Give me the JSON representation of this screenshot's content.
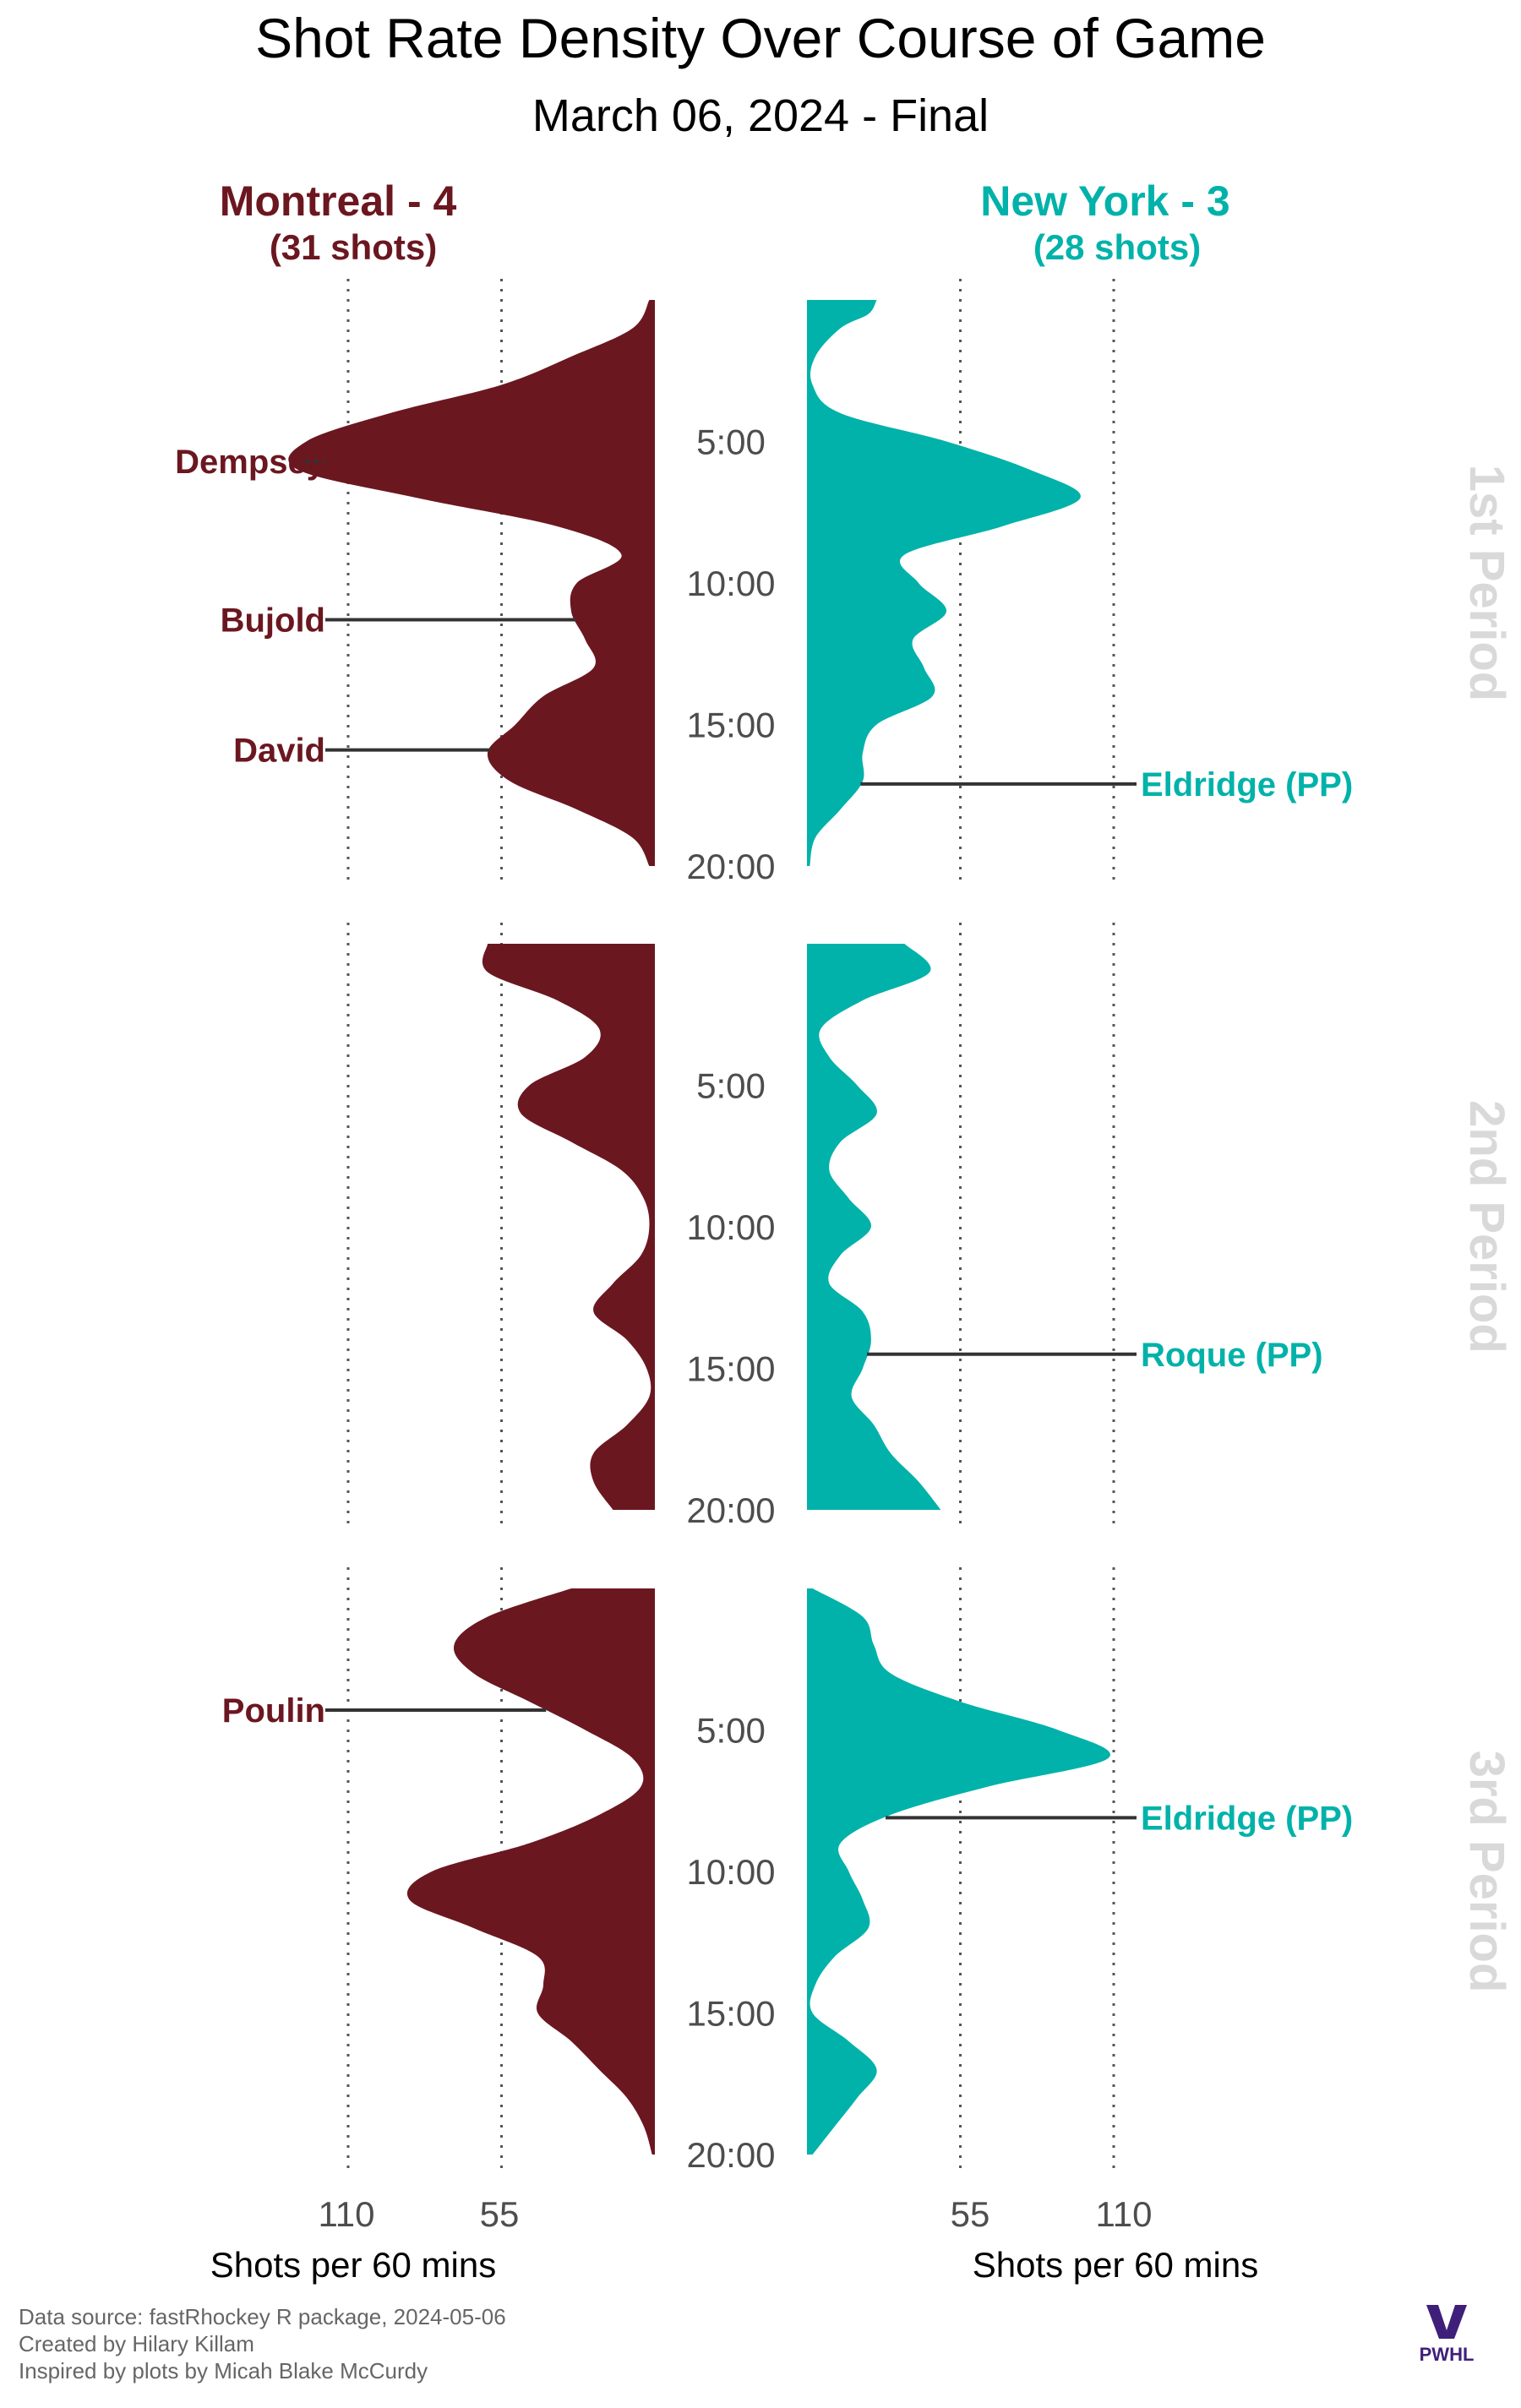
{
  "chart_data": {
    "type": "area",
    "title": "Shot Rate Density Over Course of Game",
    "subtitle": "March 06, 2024 - Final",
    "colors": {
      "home": "#6B1720",
      "away": "#00B2A9",
      "period_label": "#d9d9d9",
      "grid": "#555555"
    },
    "teams": [
      {
        "side": "left",
        "header": "Montreal - 4",
        "shots_label": "(31 shots)"
      },
      {
        "side": "right",
        "header": "New York - 3",
        "shots_label": "(28 shots)"
      }
    ],
    "periods": [
      {
        "label": "1st Period",
        "time_ticks": [
          "5:00",
          "10:00",
          "15:00",
          "20:00"
        ],
        "left": {
          "t": [
            0,
            1,
            2,
            3,
            4,
            5,
            6,
            7,
            8,
            9,
            10,
            11,
            12,
            13,
            14,
            15,
            16,
            17,
            18,
            19,
            20
          ],
          "rate": [
            2,
            8,
            30,
            55,
            95,
            125,
            128,
            85,
            35,
            12,
            28,
            30,
            25,
            22,
            40,
            50,
            60,
            52,
            28,
            8,
            2
          ]
        },
        "right": {
          "t": [
            0,
            0.5,
            1,
            2,
            3,
            4,
            5,
            6,
            7,
            8,
            9,
            10,
            11,
            12,
            13,
            14,
            15,
            16,
            17,
            18,
            19,
            20
          ],
          "rate": [
            25,
            22,
            12,
            3,
            2,
            12,
            50,
            80,
            98,
            70,
            35,
            40,
            50,
            38,
            42,
            45,
            25,
            20,
            20,
            12,
            3,
            1
          ]
        },
        "annotations": [
          {
            "team": "left",
            "player": "Dempsey",
            "time": 5.7
          },
          {
            "team": "left",
            "player": "Bujold",
            "time": 11.3
          },
          {
            "team": "left",
            "player": "David",
            "time": 15.9
          },
          {
            "team": "right",
            "player": "Eldridge (PP)",
            "time": 17.1
          }
        ]
      },
      {
        "label": "2nd Period",
        "time_ticks": [
          "5:00",
          "10:00",
          "15:00",
          "20:00"
        ],
        "left": {
          "t": [
            0,
            1,
            2,
            3,
            4,
            5,
            6,
            7,
            8,
            9,
            10,
            11,
            12,
            13,
            14,
            15,
            16,
            17,
            18,
            19,
            20
          ],
          "rate": [
            60,
            60,
            35,
            20,
            25,
            45,
            48,
            30,
            12,
            4,
            2,
            5,
            15,
            22,
            10,
            3,
            2,
            10,
            22,
            22,
            15
          ]
        },
        "right": {
          "t": [
            0,
            1,
            2,
            3,
            4,
            5,
            6,
            7,
            8,
            9,
            10,
            11,
            12,
            13,
            14,
            15,
            16,
            17,
            18,
            19,
            20
          ],
          "rate": [
            35,
            44,
            20,
            5,
            8,
            18,
            25,
            12,
            8,
            15,
            23,
            12,
            8,
            20,
            23,
            20,
            16,
            24,
            30,
            40,
            48
          ]
        },
        "annotations": [
          {
            "team": "right",
            "player": "Roque (PP)",
            "time": 14.5
          }
        ]
      },
      {
        "label": "3rd Period",
        "time_ticks": [
          "5:00",
          "10:00",
          "15:00",
          "20:00"
        ],
        "left": {
          "t": [
            0,
            1,
            2,
            3,
            4,
            5,
            6,
            7,
            8,
            9,
            10,
            11,
            12,
            13,
            14,
            15,
            16,
            17,
            18,
            19,
            20
          ],
          "rate": [
            30,
            60,
            72,
            65,
            45,
            25,
            8,
            5,
            20,
            45,
            80,
            88,
            65,
            42,
            40,
            42,
            30,
            20,
            10,
            4,
            1
          ]
        },
        "right": {
          "t": [
            0,
            1,
            2,
            3,
            4,
            5,
            6,
            7,
            8,
            9,
            10,
            11,
            12,
            13,
            14,
            15,
            16,
            17,
            18,
            19,
            20
          ],
          "rate": [
            2,
            20,
            24,
            30,
            55,
            90,
            108,
            65,
            30,
            12,
            15,
            20,
            22,
            10,
            3,
            2,
            15,
            25,
            18,
            10,
            2
          ]
        },
        "annotations": [
          {
            "team": "left",
            "player": "Poulin",
            "time": 4.3
          },
          {
            "team": "right",
            "player": "Eldridge (PP)",
            "time": 8.1
          }
        ]
      }
    ],
    "x_axis": {
      "label": "Shots per 60 mins",
      "ticks": [
        55,
        110
      ],
      "left_tick_labels": [
        "110",
        "55"
      ],
      "right_tick_labels": [
        "55",
        "110"
      ]
    },
    "y_axis": {
      "unit": "minutes",
      "range": [
        0,
        20
      ]
    }
  },
  "footer": {
    "credits": [
      "Data source: fastRhockey R package, 2024-05-06",
      "Created by Hilary Killam",
      "Inspired by plots by Micah Blake McCurdy"
    ],
    "logo_text": "PWHL"
  }
}
